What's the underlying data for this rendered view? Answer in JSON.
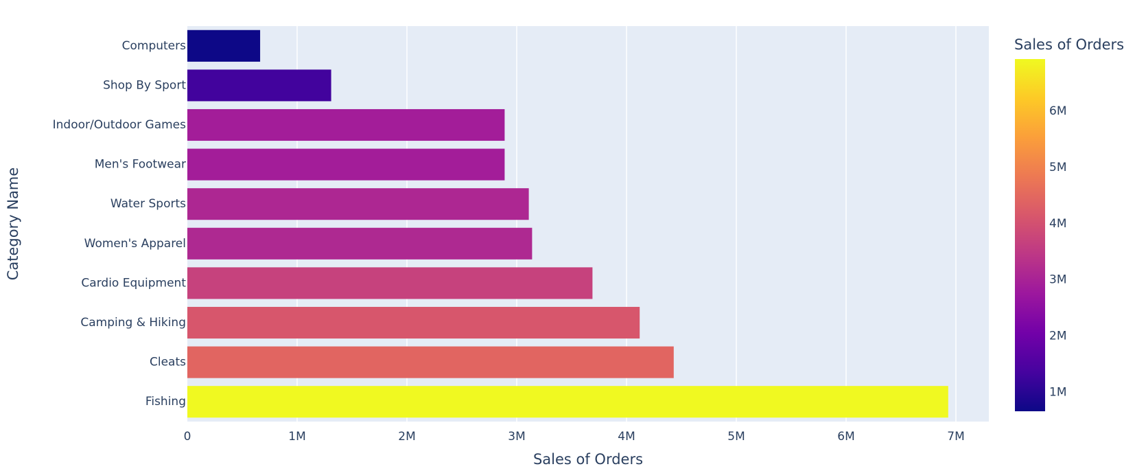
{
  "chart_data": {
    "type": "bar",
    "orientation": "horizontal",
    "categories": [
      "Fishing",
      "Cleats",
      "Camping & Hiking",
      "Cardio Equipment",
      "Women's Apparel",
      "Water Sports",
      "Men's Footwear",
      "Indoor/Outdoor Games",
      "Shop By Sport",
      "Computers"
    ],
    "values": [
      6930000,
      4430000,
      4120000,
      3690000,
      3140000,
      3110000,
      2890000,
      2890000,
      1310000,
      663000
    ],
    "xlabel": "Sales of Orders",
    "ylabel": "Category Name",
    "xlim": [
      0,
      7300000
    ],
    "x_ticks": [
      0,
      1000000,
      2000000,
      3000000,
      4000000,
      5000000,
      6000000,
      7000000
    ],
    "x_tick_labels": [
      "0",
      "1M",
      "2M",
      "3M",
      "4M",
      "5M",
      "6M",
      "7M"
    ],
    "grid": true,
    "colorbar": {
      "title": "Sales of Orders",
      "range": [
        663000,
        6930000
      ],
      "ticks": [
        1000000,
        2000000,
        3000000,
        4000000,
        5000000,
        6000000
      ],
      "tick_labels": [
        "1M",
        "2M",
        "3M",
        "4M",
        "5M",
        "6M"
      ],
      "colorscale": [
        "#0d0887",
        "#46039f",
        "#7201a8",
        "#9c179e",
        "#bd3786",
        "#d8576b",
        "#ed7953",
        "#fb9f3a",
        "#fdca26",
        "#f0f921"
      ]
    },
    "plot_background": "#e5ecf6"
  }
}
